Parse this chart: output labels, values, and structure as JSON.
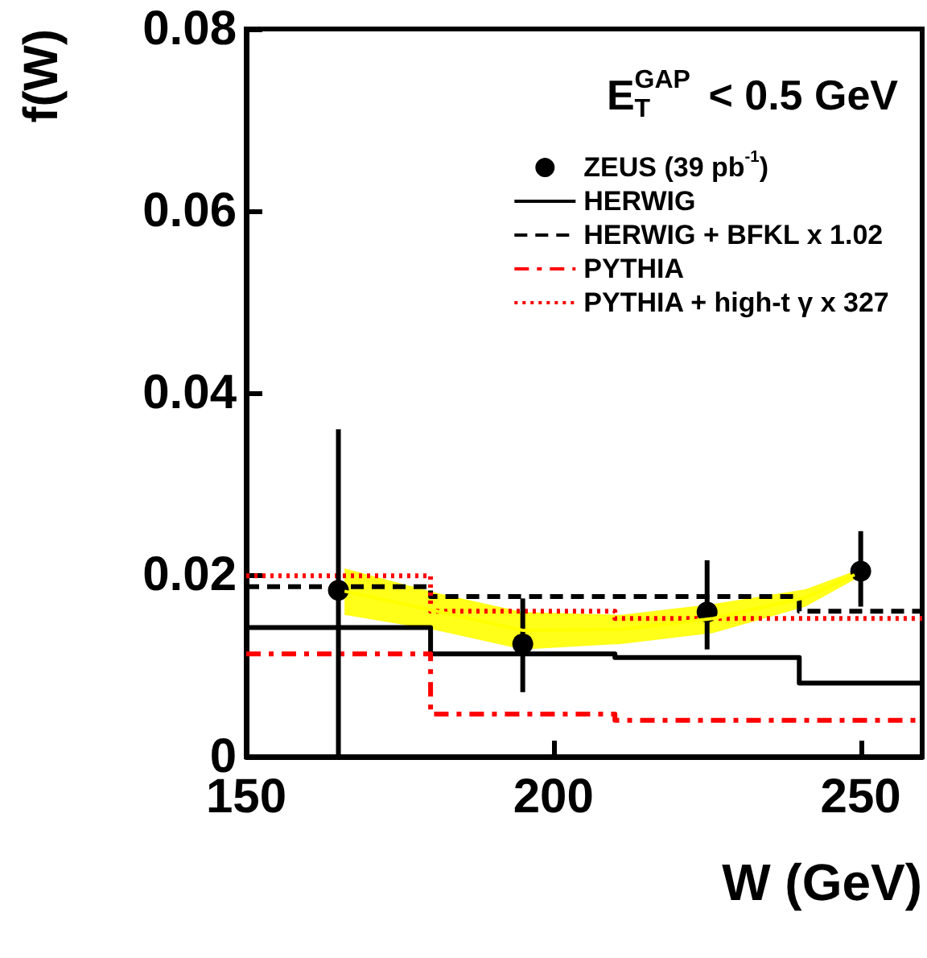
{
  "chart_data": {
    "type": "scatter",
    "xlabel": "W (GeV)",
    "ylabel": "f(W)",
    "annotations": [
      "E$^{GAP}$$_{T}$ < 0.5 GeV"
    ],
    "xlim": [
      150,
      260
    ],
    "xticks": [
      150,
      200,
      250
    ],
    "ylim": [
      0,
      0.08
    ],
    "yticks": [
      0,
      0.02,
      0.04,
      0.06,
      0.08
    ],
    "legend": "top right",
    "grid": false,
    "series": [
      {
        "type": "line",
        "color": "#ffff00",
        "x": [
          166,
          181,
          195,
          211,
          226,
          241,
          249
        ],
        "values": [
          0.0182,
          0.016,
          0.0139,
          0.014,
          0.0152,
          0.0175,
          0.02
        ],
        "lower": [
          0.0156,
          0.0139,
          0.0118,
          0.0124,
          0.0136,
          0.0165,
          0.0195
        ],
        "upper": [
          0.0207,
          0.018,
          0.0159,
          0.0156,
          0.0168,
          0.0184,
          0.0204
        ]
      },
      {
        "type": "step",
        "name": "HERWIG",
        "color": "#000000",
        "line_style": "solid",
        "x": [
          150,
          180,
          210,
          240,
          260
        ],
        "values": [
          0.0142,
          0.0113,
          0.0109,
          0.0081,
          0.0081
        ]
      },
      {
        "type": "step",
        "name": "HERWIG + BFKL x 1.02",
        "color": "#000000",
        "line_style": "dashed",
        "x": [
          150,
          180,
          210,
          240,
          260
        ],
        "values": [
          0.0187,
          0.0176,
          0.0176,
          0.016,
          0.016
        ]
      },
      {
        "type": "step",
        "name": "PYTHIA",
        "color": "#ff0000",
        "line_style": "dashdot",
        "x": [
          150,
          180,
          210,
          240,
          260
        ],
        "values": [
          0.0113,
          0.0047,
          0.004,
          0.004,
          0.004
        ]
      },
      {
        "type": "step",
        "name": "PYTHIA + high-t γ x 327",
        "color": "#ff0000",
        "line_style": "dotted",
        "x": [
          150,
          180,
          210,
          240,
          260
        ],
        "values": [
          0.0199,
          0.016,
          0.0152,
          0.0152,
          0.0152
        ]
      },
      {
        "name": "ZEUS (39 pb$^{-1}$)",
        "color": "#000000",
        "marker": "circle",
        "x": [
          165,
          195,
          225,
          250
        ],
        "values": [
          0.0183,
          0.0124,
          0.0159,
          0.0204
        ],
        "errors": [
          [
            0,
            0.036
          ],
          [
            0.0071,
            0.0174
          ],
          [
            0.0118,
            0.0216
          ],
          [
            0.0165,
            0.0248
          ]
        ]
      }
    ]
  }
}
